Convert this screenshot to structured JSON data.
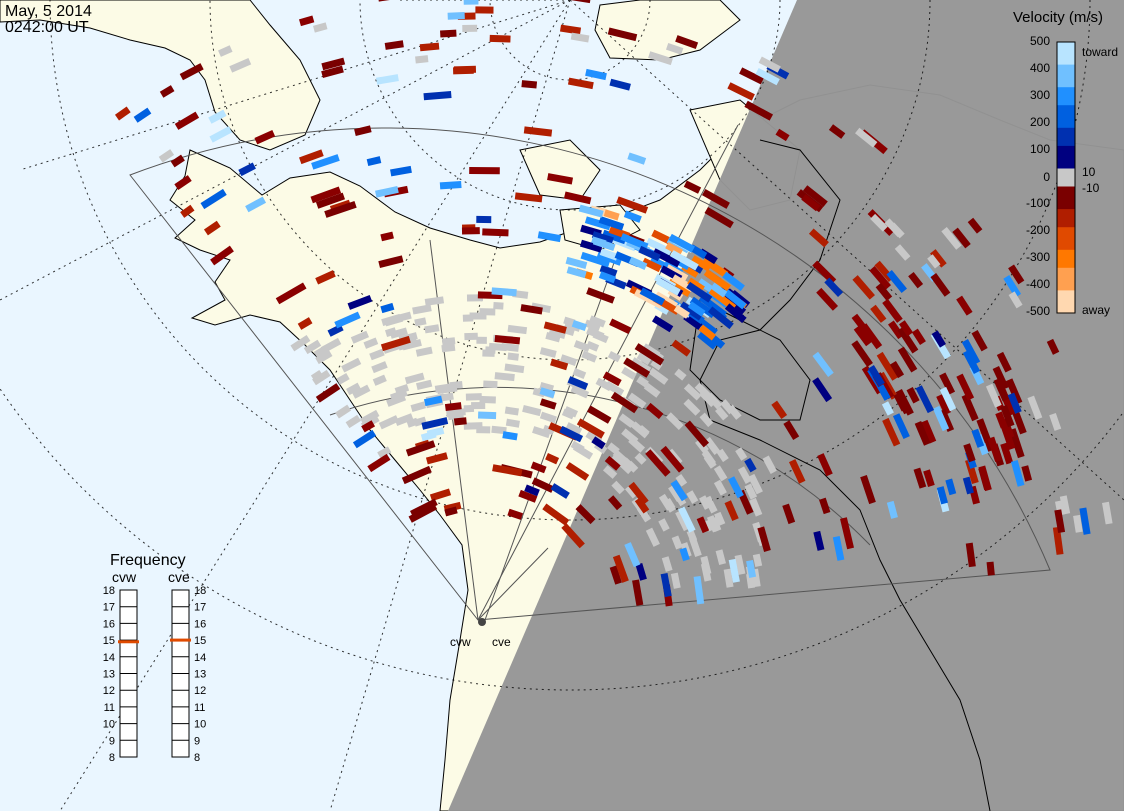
{
  "header": {
    "date": "May, 5 2014",
    "time": "0242:00 UT"
  },
  "colorbar": {
    "title": "Velocity (m/s)",
    "ticks": [
      "500",
      "400",
      "300",
      "200",
      "100",
      "10",
      "0",
      "-10",
      "-100",
      "-200",
      "-300",
      "-400",
      "-500"
    ],
    "toward_label": "toward",
    "away_label": "away",
    "colors": [
      "#ffd8b0",
      "#ffa050",
      "#ff7800",
      "#e04a00",
      "#b01e00",
      "#7a0000",
      "#c8c8c8",
      "#000080",
      "#0030b0",
      "#0060e0",
      "#2090ff",
      "#70c0ff",
      "#b8e4ff"
    ]
  },
  "frequency_panel": {
    "title": "Frequency",
    "left_label": "cvw",
    "right_label": "cve",
    "scale": [
      "18",
      "17",
      "16",
      "15",
      "14",
      "13",
      "12",
      "11",
      "10",
      "9",
      "8"
    ],
    "cvw_value": 14.9,
    "cve_value": 15.0
  },
  "radars": {
    "west_label": "cvw",
    "east_label": "cve"
  },
  "colors": {
    "ocean": "#eaf6ff",
    "land": "#fcfbe6",
    "night": "#969696",
    "ground_scatter": "#c8c8c8",
    "marker": "#e04a00"
  }
}
